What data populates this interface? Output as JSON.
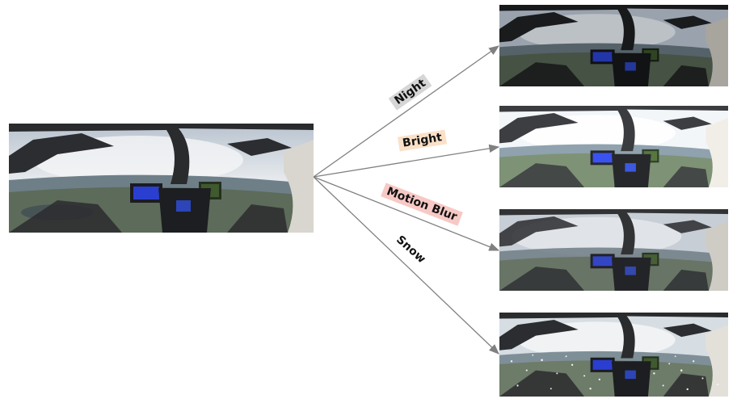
{
  "source_image": {
    "description": "cockpit view (original)"
  },
  "augmentations": [
    {
      "label": "Night",
      "badge_color": "#d6d6d6",
      "tint": "#1a1d24",
      "tint_opacity": 0.35
    },
    {
      "label": "Bright",
      "badge_color": "#fbe0c8",
      "tint": "#ffffff",
      "tint_opacity": 0.18
    },
    {
      "label": "Motion Blur",
      "badge_color": "#f7c9c5",
      "tint": "#9aa0a8",
      "tint_opacity": 0.12
    },
    {
      "label": "Snow",
      "badge_color": "#ffffff",
      "tint": "#ffffff",
      "tint_opacity": 0.08
    }
  ],
  "colors": {
    "arrow": "#808080"
  }
}
